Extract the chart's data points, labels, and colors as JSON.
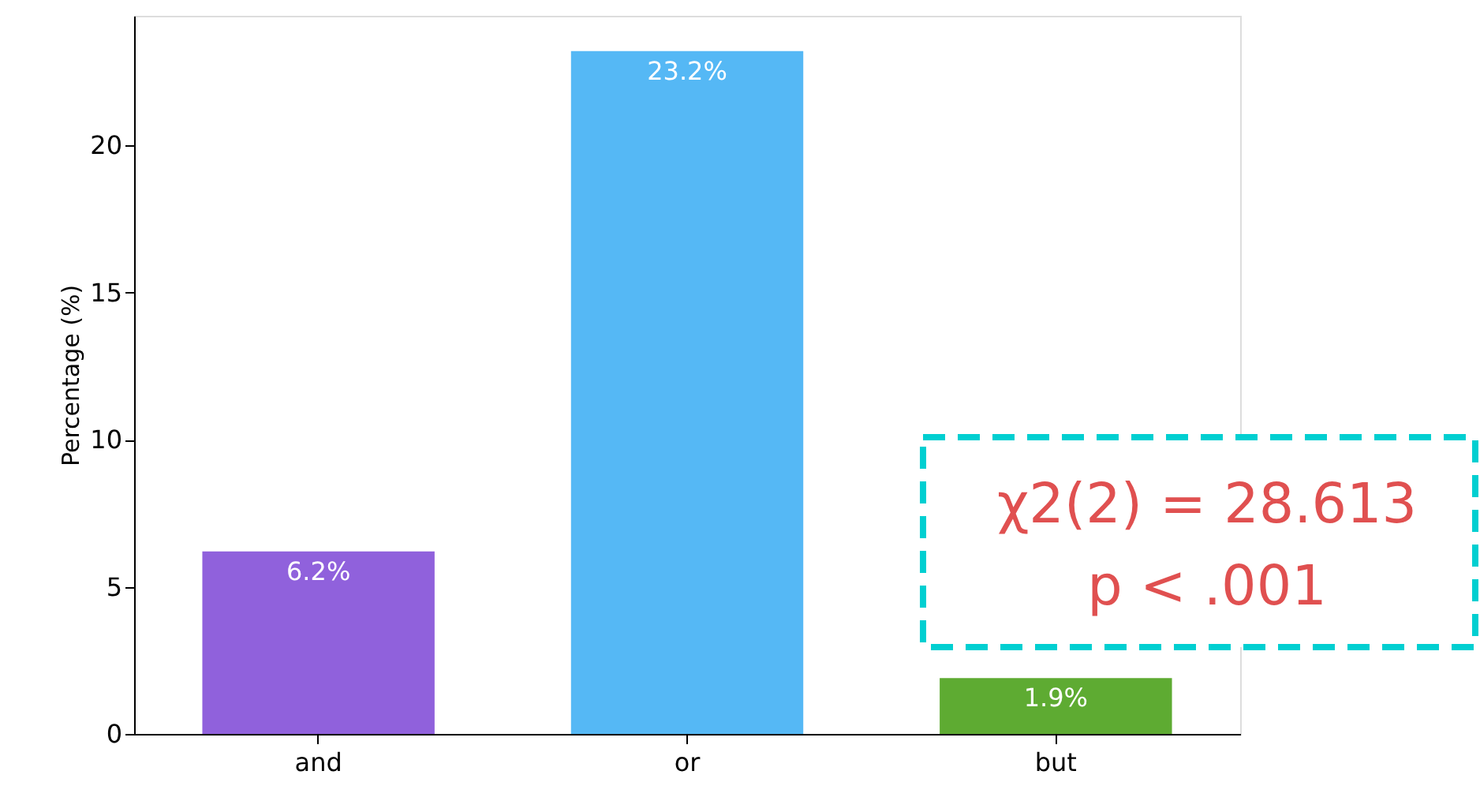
{
  "chart_data": {
    "type": "bar",
    "ylabel": "Percentage (%)",
    "categories": [
      "and",
      "or",
      "but"
    ],
    "values": [
      6.2,
      23.2,
      1.9
    ],
    "colors": [
      "#9061dc",
      "#55b8f5",
      "#5eab32"
    ],
    "value_labels": [
      "6.2%",
      "23.2%",
      "1.9%"
    ],
    "ylim": [
      0,
      24.4
    ],
    "yticks": [
      0,
      5,
      10,
      15,
      20
    ],
    "grid": false,
    "annotations": [
      "χ2(2) = 28.613\np < .001"
    ]
  }
}
